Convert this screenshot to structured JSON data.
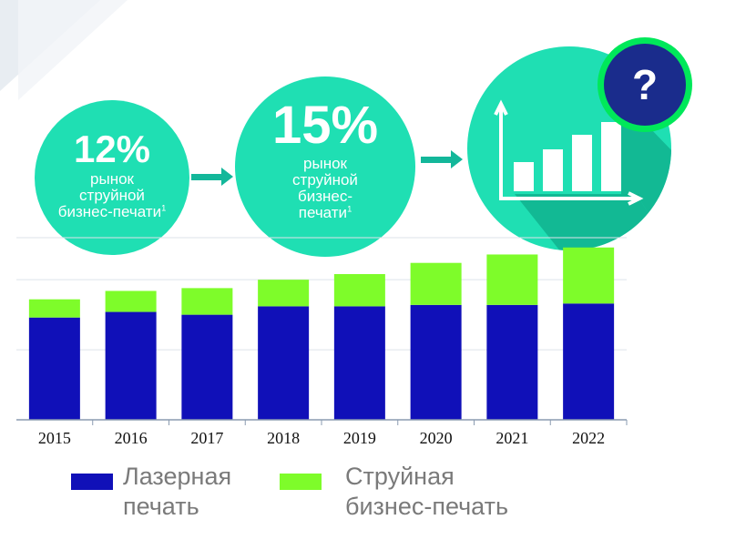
{
  "colors": {
    "bubble": "#1fdfb3",
    "arrow": "#13b79a",
    "laser": "#1010b8",
    "inkjet": "#7efc2a",
    "badge_ring": "#00e85a",
    "badge_fill": "#1a2c8c"
  },
  "bubbles": [
    {
      "value": "12%",
      "text": "рынок струйной бизнес-печати",
      "sup": "1"
    },
    {
      "value": "15%",
      "text": "рынок струйной бизнес-печати",
      "sup": "1"
    }
  ],
  "question_badge": "?",
  "icons": {
    "chart": "bar-chart-growth-icon"
  },
  "chart_data": {
    "type": "bar",
    "stacked": true,
    "categories": [
      "2015",
      "2016",
      "2017",
      "2018",
      "2019",
      "2020",
      "2021",
      "2022"
    ],
    "series": [
      {
        "name": "Лазерная печать",
        "values": [
          73,
          77,
          75,
          81,
          81,
          82,
          82,
          83
        ],
        "color": "#1010b8"
      },
      {
        "name": "Струйная бизнес-печать",
        "values": [
          13,
          15,
          19,
          19,
          23,
          30,
          36,
          40
        ],
        "color": "#7efc2a"
      }
    ],
    "ylim": [
      0,
      130
    ],
    "grid": true,
    "legend_position": "bottom"
  },
  "legend": [
    {
      "line1": "Лазерная",
      "line2": "печать"
    },
    {
      "line1": "Струйная",
      "line2": "бизнес-печать"
    }
  ]
}
